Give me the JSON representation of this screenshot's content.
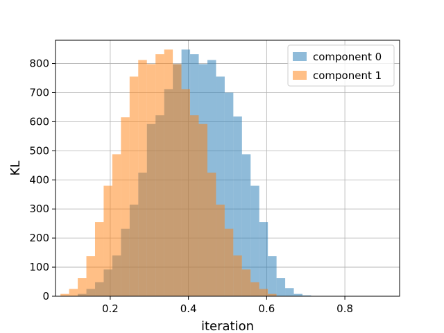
{
  "chart_data": {
    "type": "bar",
    "title": "",
    "xlabel": "iteration",
    "ylabel": "KL",
    "xlim": [
      0.06,
      0.94
    ],
    "ylim": [
      0,
      880
    ],
    "grid": true,
    "legend_position": "top-right",
    "x_ticks": [
      0.2,
      0.4,
      0.6,
      0.8
    ],
    "x_tick_labels": [
      "0.2",
      "0.4",
      "0.6",
      "0.8"
    ],
    "y_ticks": [
      0,
      100,
      200,
      300,
      400,
      500,
      600,
      700,
      800
    ],
    "y_tick_labels": [
      "0",
      "100",
      "200",
      "300",
      "400",
      "500",
      "600",
      "700",
      "800"
    ],
    "series": [
      {
        "name": "component 0",
        "color": "#1f77b4",
        "opacity": 0.5,
        "bin_edges": [
          0.117,
          0.1391,
          0.1612,
          0.1833,
          0.2054,
          0.2275,
          0.2496,
          0.2717,
          0.2938,
          0.3159,
          0.338,
          0.3601,
          0.3822,
          0.4043,
          0.4264,
          0.4485,
          0.4706,
          0.4927,
          0.5148,
          0.5369,
          0.559,
          0.5811,
          0.6032,
          0.6253,
          0.6474,
          0.6695,
          0.6916,
          0.7137,
          0.7358,
          0.7579,
          0.78,
          0.8021,
          0.8242,
          0.8463,
          0.8684,
          0.8905,
          0.9126
        ],
        "values": [
          8,
          25,
          48,
          92,
          140,
          232,
          315,
          425,
          592,
          622,
          712,
          798,
          848,
          832,
          798,
          812,
          755,
          700,
          618,
          488,
          380,
          255,
          138,
          62,
          28,
          8,
          3,
          1,
          0,
          0,
          0,
          0,
          0,
          0,
          0,
          0
        ]
      },
      {
        "name": "component 1",
        "color": "#ff7f0e",
        "opacity": 0.5,
        "bin_edges": [
          0.0727,
          0.0948,
          0.1169,
          0.139,
          0.1611,
          0.1832,
          0.2053,
          0.2274,
          0.2495,
          0.2716,
          0.2937,
          0.3158,
          0.3379,
          0.36,
          0.3821,
          0.4042,
          0.4263,
          0.4484,
          0.4705,
          0.4926,
          0.5147,
          0.5368,
          0.5589,
          0.581,
          0.6031,
          0.6252,
          0.6473,
          0.6694,
          0.6915,
          0.7136,
          0.7357,
          0.7578,
          0.7799,
          0.802,
          0.8241,
          0.8462,
          0.8683
        ],
        "values": [
          8,
          25,
          62,
          138,
          255,
          380,
          488,
          615,
          755,
          812,
          798,
          832,
          848,
          798,
          712,
          622,
          592,
          425,
          315,
          232,
          140,
          92,
          48,
          25,
          8,
          0,
          0,
          0,
          0,
          0,
          0,
          0,
          0,
          0,
          0,
          0
        ]
      }
    ]
  }
}
